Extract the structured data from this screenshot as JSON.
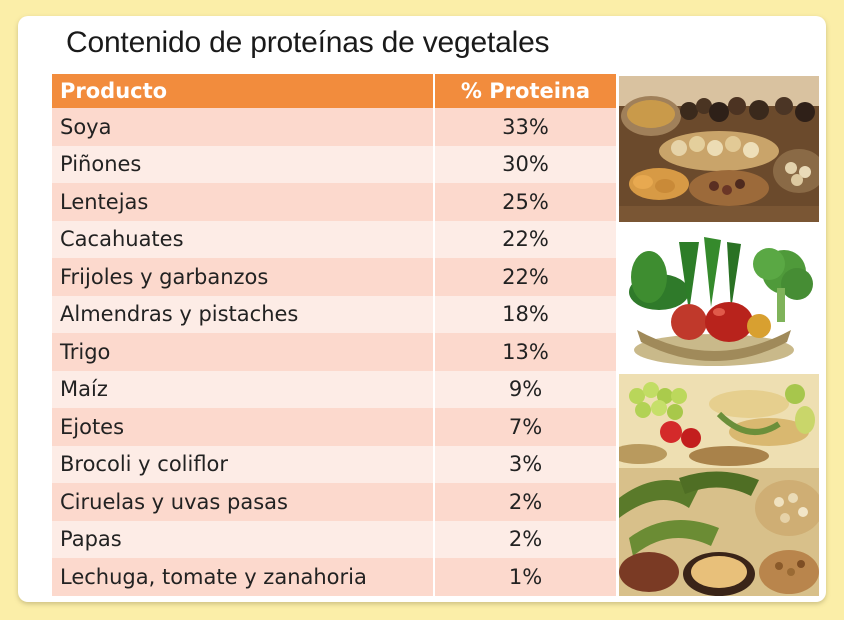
{
  "title": "Contenido de proteínas de vegetales",
  "table": {
    "headers": [
      "Producto",
      "% Proteina"
    ],
    "rows": [
      {
        "producto": "Soya",
        "proteina": "33%"
      },
      {
        "producto": "Piñones",
        "proteina": "30%"
      },
      {
        "producto": "Lentejas",
        "proteina": "25%"
      },
      {
        "producto": "Cacahuates",
        "proteina": "22%"
      },
      {
        "producto": "Frijoles y garbanzos",
        "proteina": "22%"
      },
      {
        "producto": "Almendras y pistaches",
        "proteina": "18%"
      },
      {
        "producto": "Trigo",
        "proteina": "13%"
      },
      {
        "producto": "Maíz",
        "proteina": "9%"
      },
      {
        "producto": "Ejotes",
        "proteina": "7%"
      },
      {
        "producto": "Brocoli y coliflor",
        "proteina": "3%"
      },
      {
        "producto": "Ciruelas y uvas pasas",
        "proteina": "2%"
      },
      {
        "producto": "Papas",
        "proteina": "2%"
      },
      {
        "producto": "Lechuga, tomate y zanahoria",
        "proteina": "1%"
      }
    ]
  },
  "images": [
    {
      "name": "nuts-and-dried-fruits-photo"
    },
    {
      "name": "green-vegetables-bowl-photo"
    },
    {
      "name": "grapes-and-legumes-photo"
    },
    {
      "name": "beans-and-grains-photo"
    }
  ],
  "colors": {
    "background": "#fbeea8",
    "header": "#f28c3d",
    "row_odd": "#fcd9cd",
    "row_even": "#fdece6"
  }
}
